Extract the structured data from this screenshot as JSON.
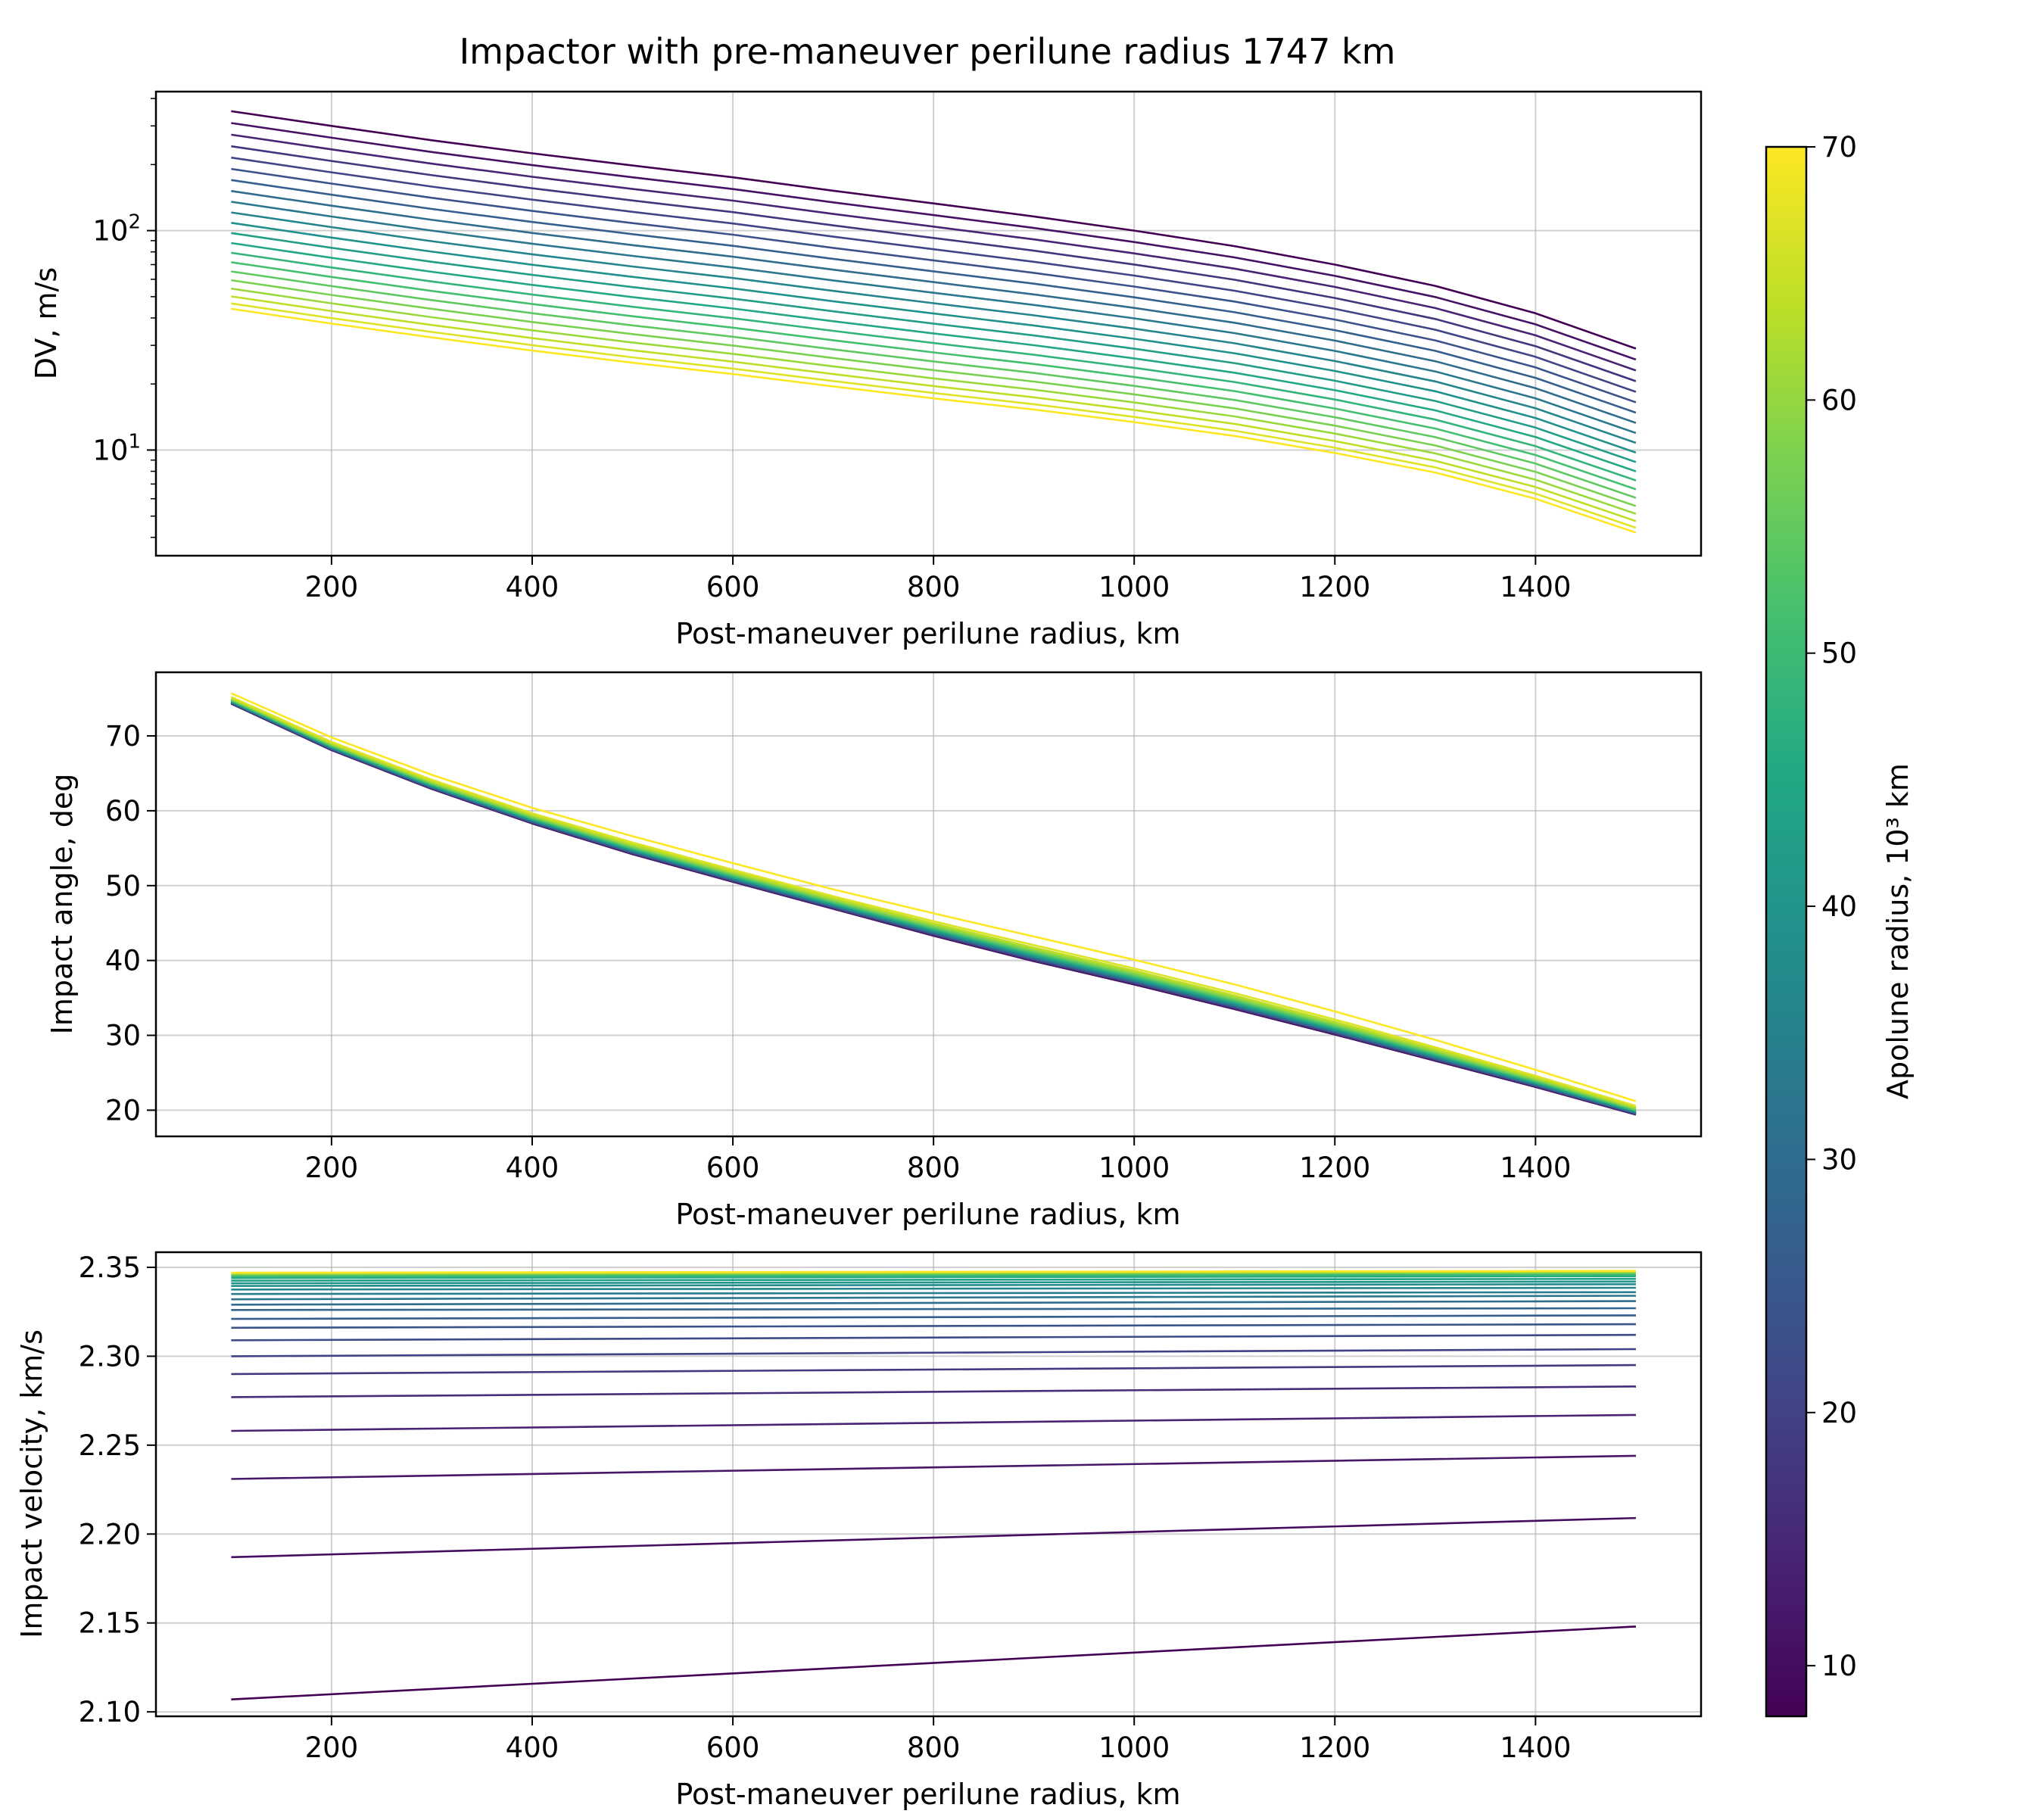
{
  "chart_data": {
    "suptitle": "Impactor with pre-maneuver perilune radius 1747 km",
    "x_domain": [
      100,
      1500
    ],
    "colorbar": {
      "label": "Apolune radius, 10³ km",
      "colormap": "viridis",
      "range": [
        8,
        70
      ],
      "ticks": [
        10,
        20,
        30,
        40,
        50,
        60,
        70
      ]
    },
    "apolune_radii": [
      8,
      10,
      12,
      14,
      16,
      18,
      20,
      22,
      24,
      26,
      28,
      30,
      32,
      34,
      36,
      38,
      40,
      42,
      44,
      46,
      48,
      50,
      52,
      54,
      56,
      58,
      60,
      62,
      64,
      66,
      68,
      70
    ],
    "panels": [
      {
        "type": "line",
        "ylabel": "DV, m/s",
        "xlabel": "Post-maneuver perilune radius, km",
        "yscale": "log",
        "xlim": [
          25,
          1565
        ],
        "ylim": [
          3.3,
          430
        ],
        "xticks": [
          200,
          400,
          600,
          800,
          1000,
          1200,
          1400
        ],
        "yticks": [
          {
            "value": 10,
            "base": "10",
            "exp": "1"
          },
          {
            "value": 100,
            "base": "10",
            "exp": "2"
          }
        ],
        "grid": true,
        "x": [
          100,
          200,
          300,
          400,
          500,
          600,
          700,
          800,
          900,
          1000,
          1100,
          1200,
          1300,
          1400,
          1500
        ],
        "series_first": {
          "apolune": 8,
          "y": [
            350,
            300,
            258,
            225,
            198,
            175,
            152,
            133,
            116,
            100,
            85,
            70,
            56,
            42,
            29
          ]
        },
        "series_last": {
          "apolune": 70,
          "y": [
            44,
            37.7,
            32.6,
            28.4,
            25,
            22.2,
            19.5,
            17.2,
            15.3,
            13.4,
            11.6,
            9.7,
            7.9,
            6,
            4.2
          ]
        },
        "series_count": 21,
        "spacing_power": 1.2
      },
      {
        "type": "line",
        "ylabel": "Impact angle, deg",
        "xlabel": "Post-maneuver perilune radius, km",
        "yscale": "linear",
        "xlim": [
          25,
          1565
        ],
        "ylim": [
          16.5,
          78.5
        ],
        "xticks": [
          200,
          400,
          600,
          800,
          1000,
          1200,
          1400
        ],
        "yticks": [
          20,
          30,
          40,
          50,
          60,
          70
        ],
        "grid": true,
        "x": [
          100,
          200,
          300,
          400,
          500,
          600,
          700,
          800,
          900,
          1000,
          1100,
          1200,
          1300,
          1400,
          1500
        ],
        "series_first": {
          "apolune": 8,
          "y": [
            74.3,
            68.1,
            62.9,
            58.3,
            54.2,
            50.5,
            46.9,
            43.3,
            39.9,
            36.8,
            33.5,
            30.1,
            26.6,
            23.1,
            19.4
          ]
        },
        "series_last": {
          "apolune": 70,
          "y": [
            75.7,
            69.8,
            64.8,
            60.4,
            56.6,
            53,
            49.5,
            46.3,
            43.2,
            40.1,
            36.8,
            33.2,
            29.4,
            25.4,
            21.2
          ]
        },
        "series_count": 21,
        "spacing_power": 0.35
      },
      {
        "type": "line",
        "ylabel": "Impact velocity, km/s",
        "xlabel": "Post-maneuver perilune radius, km",
        "yscale": "linear",
        "xlim": [
          25,
          1565
        ],
        "ylim": [
          2.0975,
          2.3585
        ],
        "xticks": [
          200,
          400,
          600,
          800,
          1000,
          1200,
          1400
        ],
        "yticks": [
          2.1,
          2.15,
          2.2,
          2.25,
          2.3,
          2.35
        ],
        "ytick_labels": [
          "2.10",
          "2.15",
          "2.20",
          "2.25",
          "2.30",
          "2.35"
        ],
        "grid": true,
        "x": [
          100,
          1500
        ],
        "series": [
          {
            "apolune": 8,
            "y": [
              2.107,
              2.148
            ]
          },
          {
            "apolune": 10,
            "y": [
              2.187,
              2.209
            ]
          },
          {
            "apolune": 12,
            "y": [
              2.231,
              2.244
            ]
          },
          {
            "apolune": 14,
            "y": [
              2.258,
              2.267
            ]
          },
          {
            "apolune": 16,
            "y": [
              2.277,
              2.283
            ]
          },
          {
            "apolune": 18,
            "y": [
              2.29,
              2.295
            ]
          },
          {
            "apolune": 20,
            "y": [
              2.3,
              2.304
            ]
          },
          {
            "apolune": 22,
            "y": [
              2.309,
              2.312
            ]
          },
          {
            "apolune": 24,
            "y": [
              2.316,
              2.318
            ]
          },
          {
            "apolune": 26,
            "y": [
              2.321,
              2.323
            ]
          },
          {
            "apolune": 28,
            "y": [
              2.326,
              2.327
            ]
          },
          {
            "apolune": 30,
            "y": [
              2.329,
              2.331
            ]
          },
          {
            "apolune": 32,
            "y": [
              2.332,
              2.334
            ]
          },
          {
            "apolune": 34,
            "y": [
              2.335,
              2.336
            ]
          },
          {
            "apolune": 36,
            "y": [
              2.3375,
              2.3385
            ]
          },
          {
            "apolune": 38,
            "y": [
              2.3395,
              2.3405
            ]
          },
          {
            "apolune": 40,
            "y": [
              2.341,
              2.342
            ]
          },
          {
            "apolune": 43,
            "y": [
              2.3425,
              2.3435
            ]
          },
          {
            "apolune": 46,
            "y": [
              2.344,
              2.345
            ]
          },
          {
            "apolune": 50,
            "y": [
              2.345,
              2.346
            ]
          },
          {
            "apolune": 55,
            "y": [
              2.3458,
              2.3468
            ]
          },
          {
            "apolune": 62,
            "y": [
              2.3464,
              2.3474
            ]
          },
          {
            "apolune": 70,
            "y": [
              2.347,
              2.348
            ]
          }
        ]
      }
    ]
  }
}
